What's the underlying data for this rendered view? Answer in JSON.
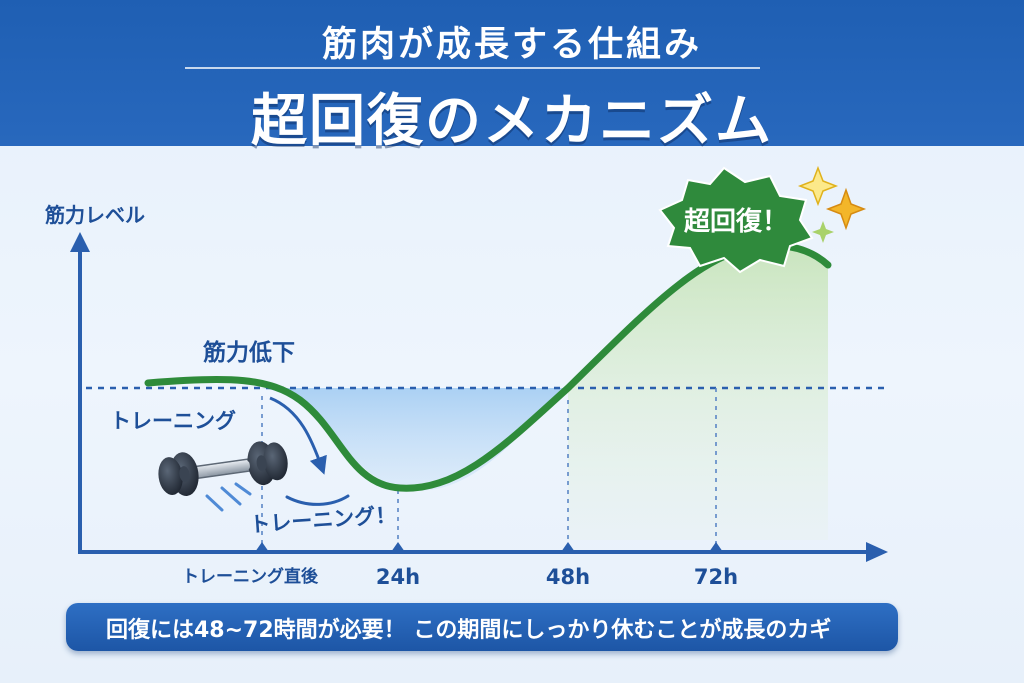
{
  "header": {
    "subtitle": "筋肉が成長する仕組み",
    "title": "超回復のメカニズム"
  },
  "axes": {
    "y_label": "筋力レベル",
    "x_ticks": [
      "トレーニング直後",
      "24h",
      "48h",
      "72h"
    ]
  },
  "annotations": {
    "decline": "筋力低下",
    "training_left": "トレーニング",
    "training_bottom": "トレーニング！",
    "peak_badge": "超回復！"
  },
  "banner": {
    "text": "回復には48~72時間が必要！ この期間にしっかり休むことが成長のカギ"
  },
  "icons": [
    "dumbbell-icon",
    "sparkle-icon"
  ],
  "colors": {
    "header_blue": "#1f5fb3",
    "curve_green": "#2e8b3a",
    "axis_blue": "#2a5fae",
    "badge_green": "#2f8a3c",
    "sparkle_gold": "#f3b62a"
  }
}
